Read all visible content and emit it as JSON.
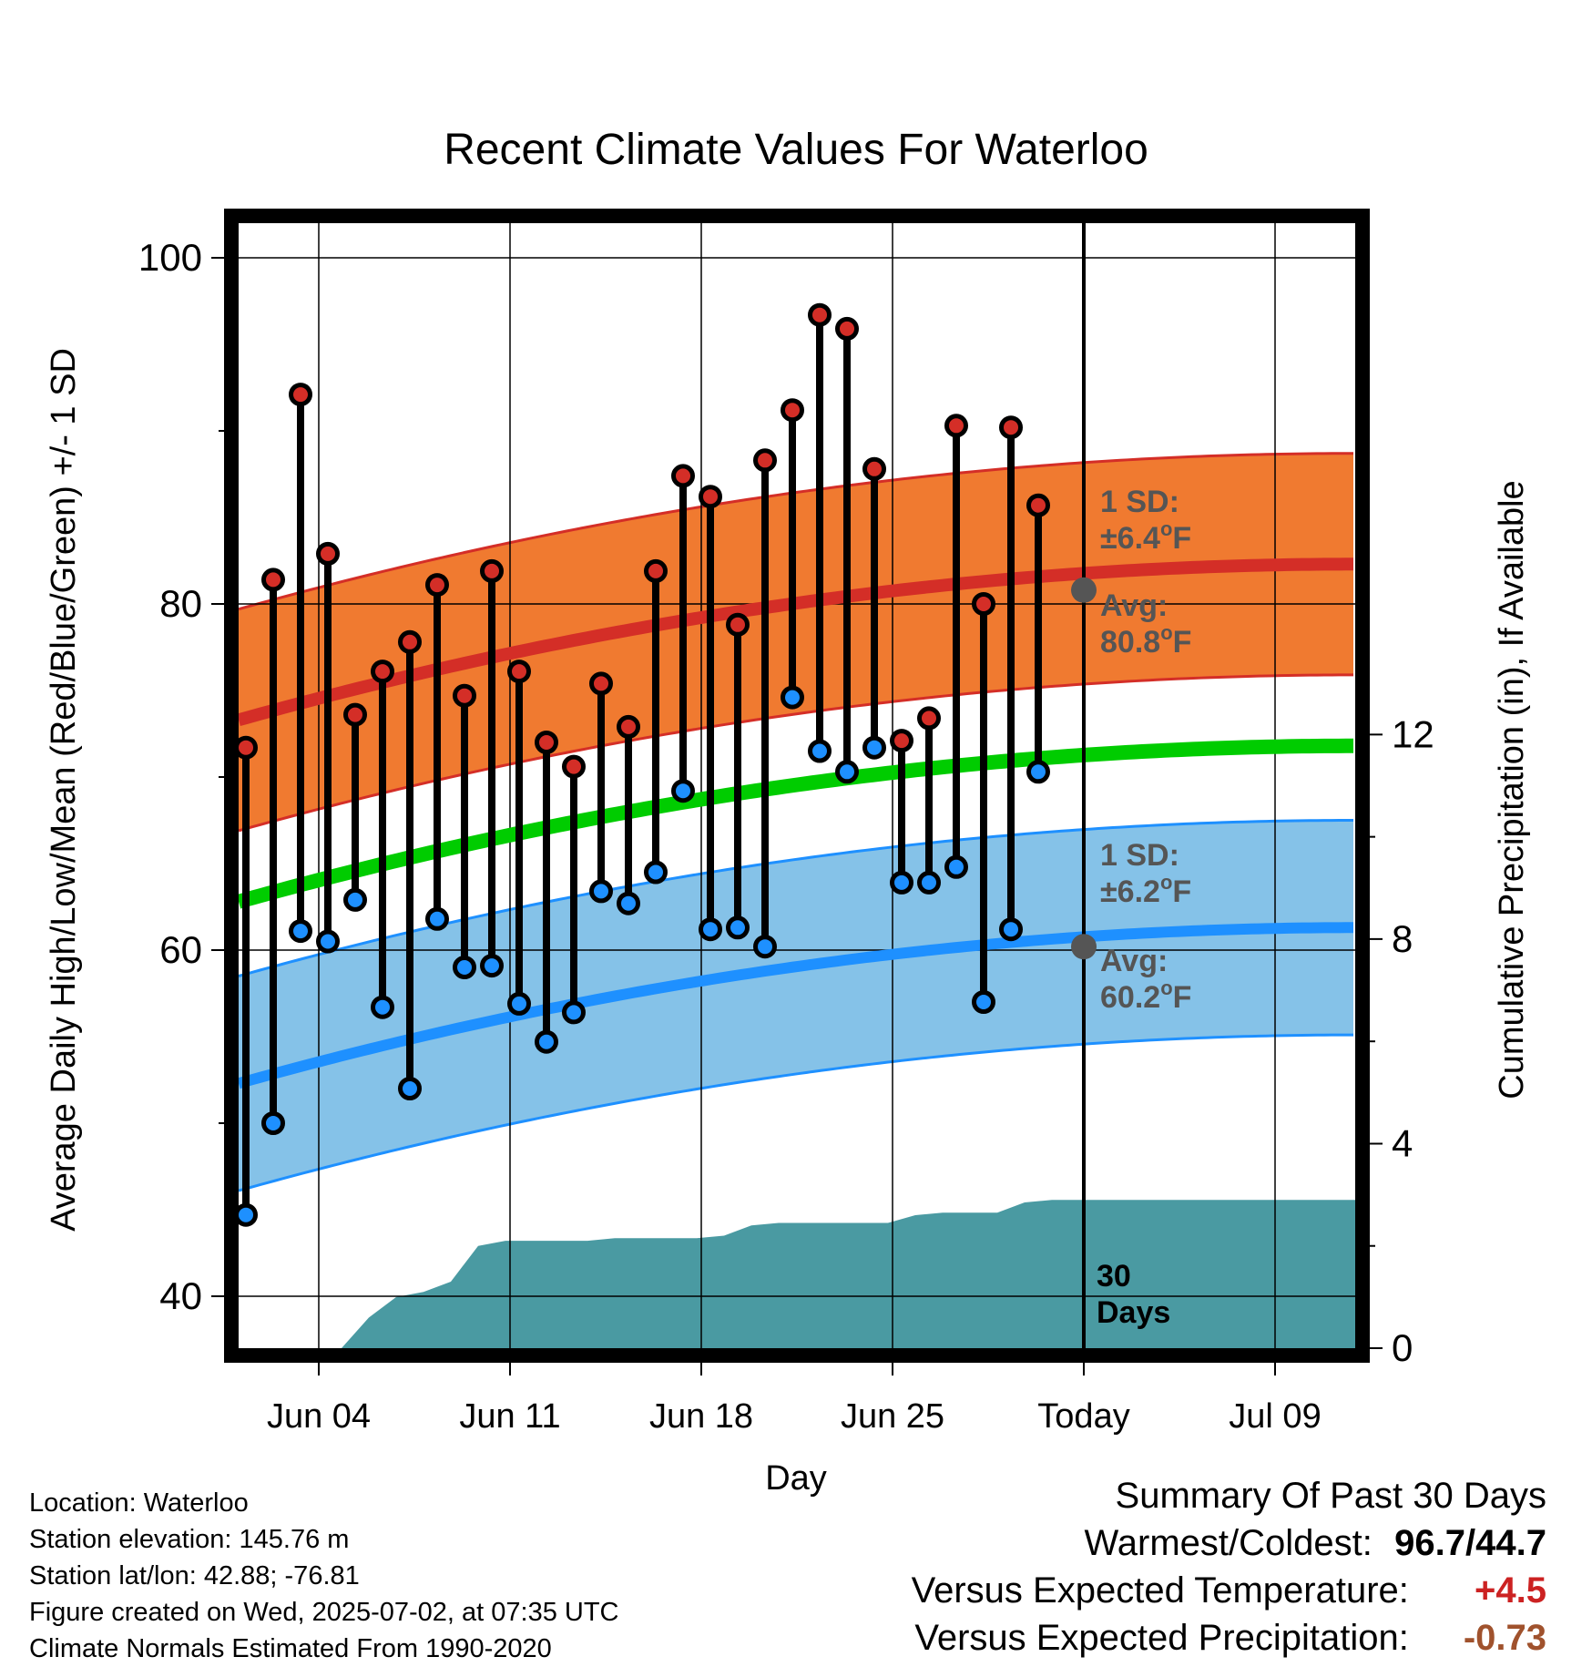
{
  "chart_data": {
    "type": "line",
    "title": "Recent Climate Values For Waterloo",
    "xlabel": "Day",
    "ylabel_left": "Average Daily High/Low/Mean (Red/Blue/Green) +/- 1 SD",
    "ylabel_right": "Cumulative Precipitation (in), If Available",
    "x_ticks": [
      "Jun 04",
      "Jun 11",
      "Jun 18",
      "Jun 25",
      "Today",
      "Jul 09"
    ],
    "ylim_left": [
      37,
      102
    ],
    "left_ticks": [
      40,
      60,
      80,
      100
    ],
    "ylim_right": [
      0,
      22
    ],
    "right_ticks": [
      0,
      4,
      8,
      12
    ],
    "grid": true,
    "normals": {
      "high_mean": [
        73.3,
        82.3
      ],
      "high_sd": 6.4,
      "mean_mean": [
        62.8,
        71.8
      ],
      "low_mean": [
        52.3,
        61.3
      ],
      "low_sd": 6.2,
      "avg_high_today": 80.8,
      "avg_low_today": 60.2
    },
    "daily_highs": [
      71.7,
      81.4,
      92.1,
      82.9,
      73.6,
      76.1,
      77.8,
      81.1,
      74.7,
      81.9,
      76.1,
      72.0,
      70.6,
      75.4,
      72.9,
      81.9,
      87.4,
      86.2,
      78.8,
      88.3,
      91.2,
      96.7,
      95.9,
      87.8,
      72.1,
      73.4,
      90.3,
      80.0,
      90.2,
      85.7
    ],
    "daily_lows": [
      44.7,
      50.0,
      61.1,
      60.5,
      62.9,
      56.7,
      52.0,
      61.8,
      59.0,
      59.1,
      56.9,
      54.7,
      56.4,
      63.4,
      62.7,
      64.5,
      69.2,
      61.2,
      61.3,
      60.2,
      74.6,
      71.5,
      70.3,
      71.7,
      63.9,
      63.9,
      64.8,
      57.0,
      61.2,
      70.3
    ],
    "cumulative_precip": [
      0,
      0,
      0,
      0,
      0.6,
      1.0,
      1.1,
      1.3,
      2.0,
      2.1,
      2.1,
      2.1,
      2.1,
      2.15,
      2.15,
      2.15,
      2.15,
      2.2,
      2.4,
      2.45,
      2.45,
      2.45,
      2.45,
      2.45,
      2.6,
      2.65,
      2.65,
      2.65,
      2.85,
      2.9
    ],
    "annotations": {
      "high_sd": "1 SD:",
      "high_sd_val": "±6.4",
      "high_avg": "Avg:",
      "high_avg_val": "80.8",
      "low_sd": "1 SD:",
      "low_sd_val": "±6.2",
      "low_avg": "Avg:",
      "low_avg_val": "60.2",
      "unit_o": "o",
      "unit_f": "F",
      "days_num": "30",
      "days_word": "Days"
    },
    "colors": {
      "high": "#d42e27",
      "high_band": "#f07a30",
      "mean": "#00cc00",
      "low": "#1e90ff",
      "low_band": "#85c2e8",
      "precip": "#4a9aa2",
      "annot": "#555555"
    }
  },
  "info": {
    "location": "Location: Waterloo",
    "elevation": "Station elevation: 145.76 m",
    "latlon": "Station lat/lon: 42.88; -76.81",
    "created": "Figure created on Wed, 2025-07-02, at 07:35 UTC",
    "normals": "Climate Normals Estimated From 1990-2020"
  },
  "summary": {
    "title": "Summary Of Past 30 Days",
    "warm_cold_label": "Warmest/Coldest:",
    "warm_cold_value": "96.7/44.7",
    "temp_label": "Versus Expected Temperature:",
    "temp_value": "+4.5",
    "precip_label": "Versus Expected Precipitation:",
    "precip_value": "-0.73",
    "temp_color": "#cc2222",
    "precip_color": "#a0522d"
  }
}
